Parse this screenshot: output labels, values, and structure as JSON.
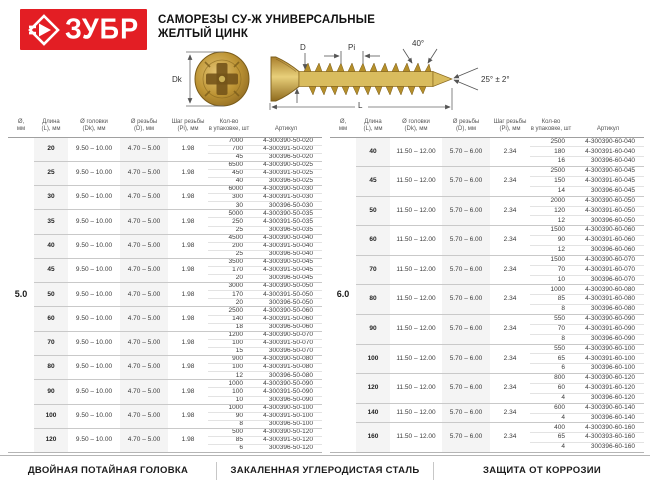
{
  "brand": {
    "logo_text": "ЗУБР"
  },
  "header": {
    "title_line1": "САМОРЕЗЫ СУ-Ж УНИВЕРСАЛЬНЫЕ",
    "title_line2": "ЖЕЛТЫЙ ЦИНК"
  },
  "diagram": {
    "labels": {
      "dk": "Dk",
      "d": "D",
      "pi": "Pi",
      "angle_top": "40°",
      "angle_tip": "25° ± 2°",
      "length": "L"
    }
  },
  "columns": [
    {
      "l1": "Ø,",
      "l2": "мм"
    },
    {
      "l1": "Длина",
      "l2": "(L), мм"
    },
    {
      "l1": "Ø головки",
      "l2": "(Dk), мм"
    },
    {
      "l1": "Ø резьбы",
      "l2": "(D), мм"
    },
    {
      "l1": "Шаг резьбы",
      "l2": "(Pi), мм"
    },
    {
      "l1": "Кол-во",
      "l2": "в упаковке, шт"
    },
    {
      "l1": "Артикул",
      "l2": ""
    }
  ],
  "tables": [
    {
      "diameter": "5.0",
      "head_diameter": "9.50 – 10.00",
      "thread_diameter": "4.70 – 5.00",
      "thread_pitch": "1.98",
      "groups": [
        {
          "length": "20",
          "rows": [
            [
              "7000",
              "4-300390-50-020"
            ],
            [
              "700",
              "4-300391-50-020"
            ],
            [
              "45",
              "300396-50-020"
            ]
          ]
        },
        {
          "length": "25",
          "rows": [
            [
              "6500",
              "4-300390-50-025"
            ],
            [
              "450",
              "4-300391-50-025"
            ],
            [
              "40",
              "300396-50-025"
            ]
          ]
        },
        {
          "length": "30",
          "rows": [
            [
              "6000",
              "4-300390-50-030"
            ],
            [
              "300",
              "4-300391-50-030"
            ],
            [
              "30",
              "300396-50-030"
            ]
          ]
        },
        {
          "length": "35",
          "rows": [
            [
              "5000",
              "4-300390-50-035"
            ],
            [
              "250",
              "4-300391-50-035"
            ],
            [
              "25",
              "300396-50-035"
            ]
          ]
        },
        {
          "length": "40",
          "rows": [
            [
              "4500",
              "4-300390-50-040"
            ],
            [
              "200",
              "4-300391-50-040"
            ],
            [
              "25",
              "300396-50-040"
            ]
          ]
        },
        {
          "length": "45",
          "rows": [
            [
              "3500",
              "4-300390-50-045"
            ],
            [
              "170",
              "4-300391-50-045"
            ],
            [
              "20",
              "300396-50-045"
            ]
          ]
        },
        {
          "length": "50",
          "rows": [
            [
              "3000",
              "4-300390-50-050"
            ],
            [
              "170",
              "4-300391-50-050"
            ],
            [
              "20",
              "300396-50-050"
            ]
          ]
        },
        {
          "length": "60",
          "rows": [
            [
              "2500",
              "4-300390-50-060"
            ],
            [
              "140",
              "4-300391-50-060"
            ],
            [
              "18",
              "300396-50-060"
            ]
          ]
        },
        {
          "length": "70",
          "rows": [
            [
              "1200",
              "4-300390-50-070"
            ],
            [
              "100",
              "4-300391-50-070"
            ],
            [
              "15",
              "300396-50-070"
            ]
          ]
        },
        {
          "length": "80",
          "rows": [
            [
              "900",
              "4-300390-50-080"
            ],
            [
              "100",
              "4-300391-50-080"
            ],
            [
              "12",
              "300396-50-080"
            ]
          ]
        },
        {
          "length": "90",
          "rows": [
            [
              "1000",
              "4-300390-50-090"
            ],
            [
              "100",
              "4-300391-50-090"
            ],
            [
              "10",
              "300396-50-090"
            ]
          ]
        },
        {
          "length": "100",
          "rows": [
            [
              "1000",
              "4-300390-50-100"
            ],
            [
              "90",
              "4-300391-50-100"
            ],
            [
              "8",
              "300396-50-100"
            ]
          ]
        },
        {
          "length": "120",
          "rows": [
            [
              "500",
              "4-300390-50-120"
            ],
            [
              "85",
              "4-300391-50-120"
            ],
            [
              "6",
              "300396-50-120"
            ]
          ]
        }
      ]
    },
    {
      "diameter": "6.0",
      "head_diameter": "11.50 – 12.00",
      "thread_diameter": "5.70 – 6.00",
      "thread_pitch": "2.34",
      "groups": [
        {
          "length": "40",
          "rows": [
            [
              "2500",
              "4-300390-60-040"
            ],
            [
              "180",
              "4-300391-60-040"
            ],
            [
              "16",
              "300396-60-040"
            ]
          ]
        },
        {
          "length": "45",
          "rows": [
            [
              "2500",
              "4-300390-60-045"
            ],
            [
              "150",
              "4-300391-60-045"
            ],
            [
              "14",
              "300396-60-045"
            ]
          ]
        },
        {
          "length": "50",
          "rows": [
            [
              "2000",
              "4-300390-60-050"
            ],
            [
              "120",
              "4-300391-60-050"
            ],
            [
              "12",
              "300396-60-050"
            ]
          ]
        },
        {
          "length": "60",
          "rows": [
            [
              "1500",
              "4-300390-60-060"
            ],
            [
              "90",
              "4-300391-60-060"
            ],
            [
              "12",
              "300396-60-060"
            ]
          ]
        },
        {
          "length": "70",
          "rows": [
            [
              "1500",
              "4-300390-60-070"
            ],
            [
              "70",
              "4-300391-60-070"
            ],
            [
              "10",
              "300396-60-070"
            ]
          ]
        },
        {
          "length": "80",
          "rows": [
            [
              "1000",
              "4-300390-60-080"
            ],
            [
              "85",
              "4-300391-60-080"
            ],
            [
              "8",
              "300396-60-080"
            ]
          ]
        },
        {
          "length": "90",
          "rows": [
            [
              "550",
              "4-300390-60-090"
            ],
            [
              "70",
              "4-300391-60-090"
            ],
            [
              "8",
              "300396-60-090"
            ]
          ]
        },
        {
          "length": "100",
          "rows": [
            [
              "550",
              "4-300390-60-100"
            ],
            [
              "65",
              "4-300391-60-100"
            ],
            [
              "6",
              "300396-60-100"
            ]
          ]
        },
        {
          "length": "120",
          "rows": [
            [
              "800",
              "4-300390-60-120"
            ],
            [
              "60",
              "4-300391-60-120"
            ],
            [
              "4",
              "300396-60-120"
            ]
          ]
        },
        {
          "length": "140",
          "rows": [
            [
              "600",
              "4-300390-60-140"
            ],
            [
              "4",
              "300396-60-140"
            ]
          ]
        },
        {
          "length": "160",
          "rows": [
            [
              "400",
              "4-300390-60-160"
            ],
            [
              "65",
              "4-300393-60-160"
            ],
            [
              "4",
              "300396-60-160"
            ]
          ]
        }
      ]
    }
  ],
  "footer": [
    "ДВОЙНАЯ ПОТАЙНАЯ ГОЛОВКА",
    "ЗАКАЛЕННАЯ УГЛЕРОДИСТАЯ СТАЛЬ",
    "ЗАЩИТА ОТ КОРРОЗИИ"
  ]
}
